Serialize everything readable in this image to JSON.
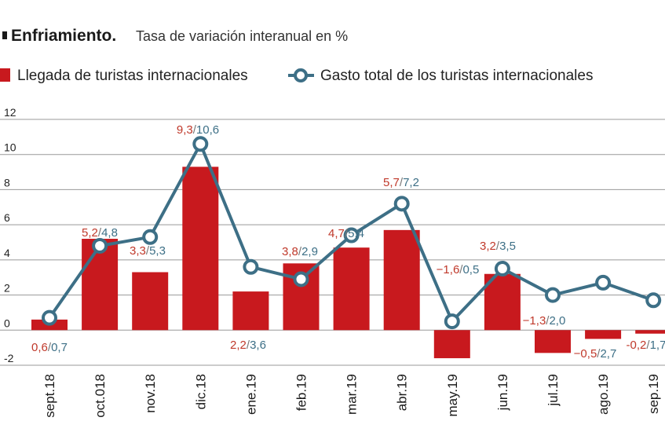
{
  "title": "Enfriamiento.",
  "subtitle": "Tasa de variación interanual en %",
  "colors": {
    "bar": "#c8191e",
    "line": "#3d6f86",
    "label_bar": "#c0392b",
    "label_line": "#3d6f86"
  },
  "chart_data": {
    "type": "bar",
    "categories": [
      "sept.18",
      "oct.018",
      "nov.18",
      "dic.18",
      "ene.19",
      "feb.19",
      "mar.19",
      "abr.19",
      "may.19",
      "jun.19",
      "jul.19",
      "ago.19",
      "sep.19"
    ],
    "series": [
      {
        "name": "Llegada de turistas internacionales",
        "type": "bar",
        "values": [
          0.6,
          5.2,
          3.3,
          9.3,
          2.2,
          3.8,
          4.7,
          5.7,
          -1.6,
          3.2,
          -1.3,
          -0.5,
          -0.2
        ]
      },
      {
        "name": "Gasto total de los turistas internacionales",
        "type": "line",
        "values": [
          0.7,
          4.8,
          5.3,
          10.6,
          3.6,
          2.9,
          5.4,
          7.2,
          0.5,
          3.5,
          2.0,
          2.7,
          1.7
        ]
      }
    ],
    "data_labels": [
      {
        "bar": "0,6",
        "line": "0,7"
      },
      {
        "bar": "5,2",
        "line": "4,8"
      },
      {
        "bar": "3,3",
        "line": "5,3"
      },
      {
        "bar": "9,3",
        "line": "10,6"
      },
      {
        "bar": "2,2",
        "line": "3,6"
      },
      {
        "bar": "3,8",
        "line": "2,9"
      },
      {
        "bar": "4,7",
        "line": "5,4"
      },
      {
        "bar": "5,7",
        "line": "7,2"
      },
      {
        "bar": "−1,6",
        "line": "0,5"
      },
      {
        "bar": "3,2",
        "line": "3,5"
      },
      {
        "bar": "−1,3",
        "line": "2,0"
      },
      {
        "bar": "−0,5",
        "line": "2,7"
      },
      {
        "bar": "-0,2",
        "line": "1,7"
      }
    ],
    "yticks": [
      12,
      10,
      8,
      6,
      4,
      2,
      0,
      -2
    ],
    "ytick_labels": [
      "12",
      "10",
      "8",
      "6",
      "4",
      "2",
      "0",
      "-2"
    ],
    "ylim": [
      -2,
      12
    ],
    "grid": true,
    "legend_position": "top-left"
  }
}
